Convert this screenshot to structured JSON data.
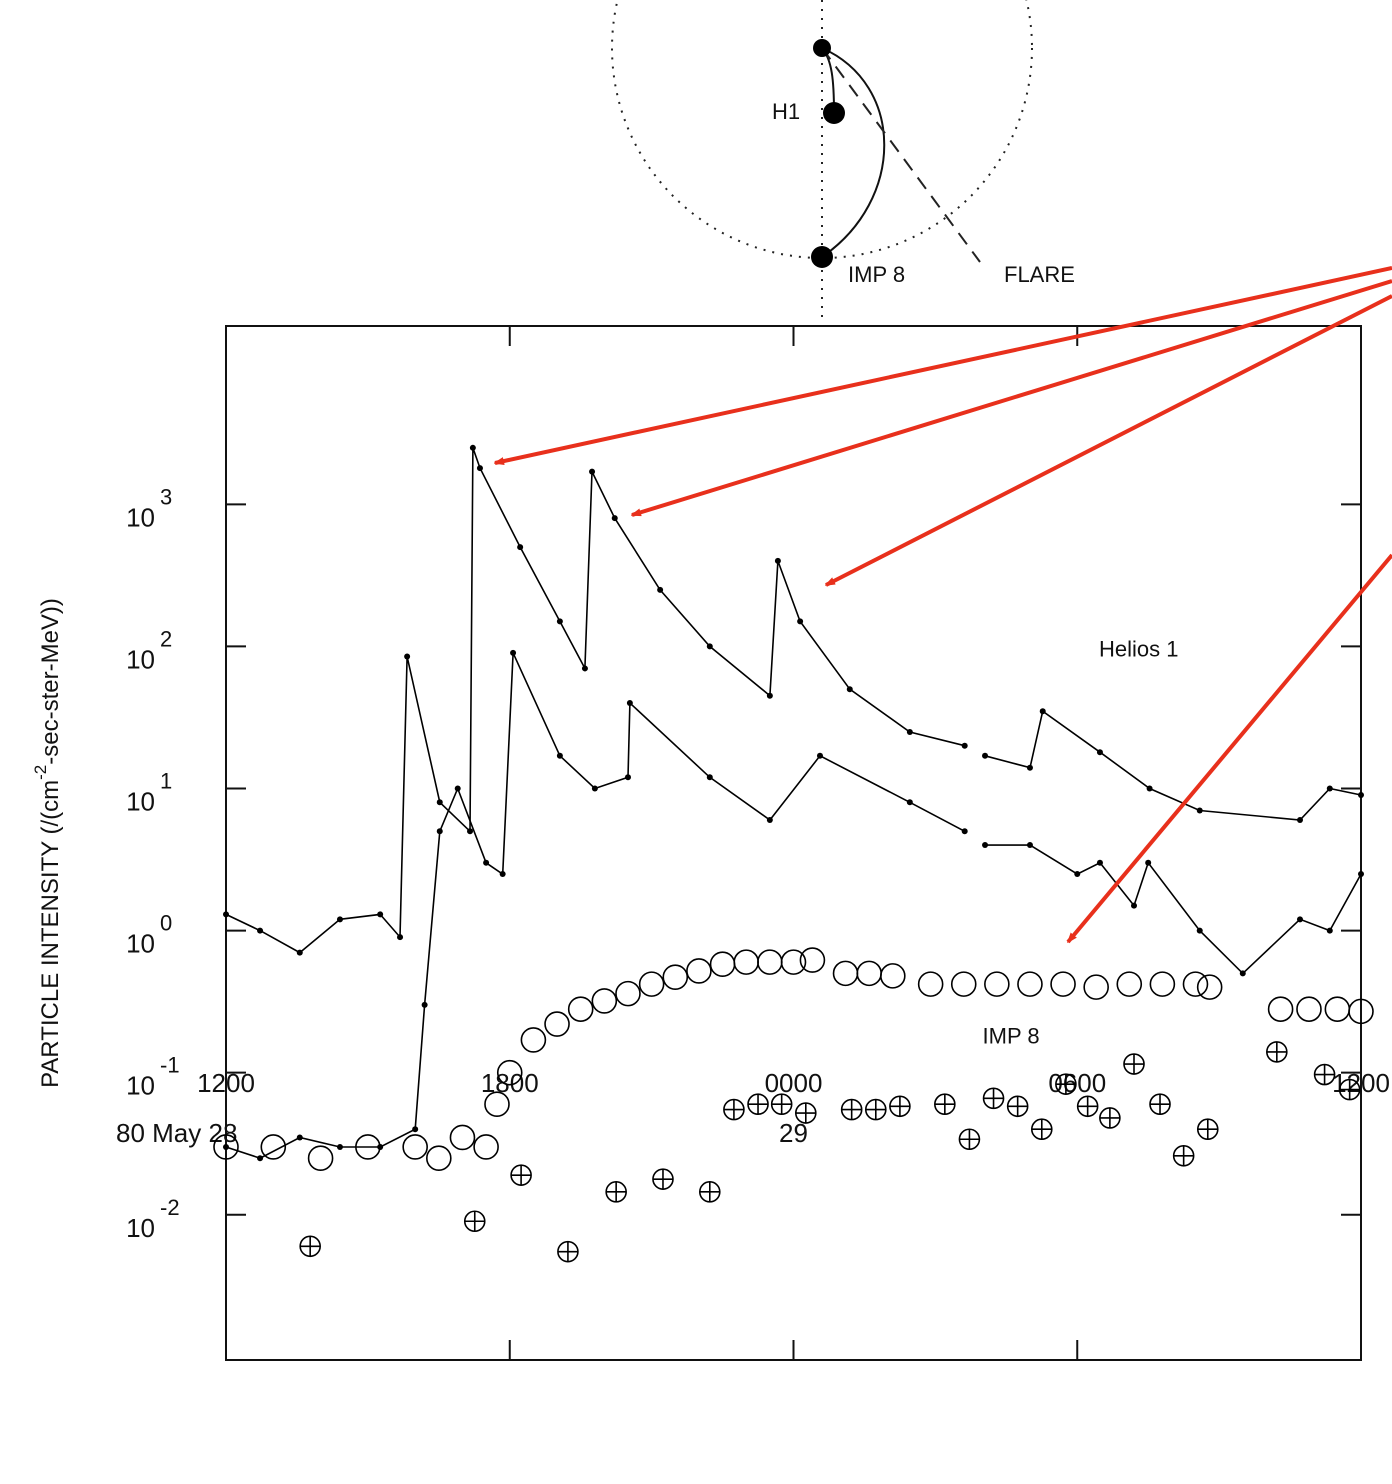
{
  "chart_data": {
    "type": "line",
    "y_label_parts": [
      "PARTICLE INTENSITY (/(cm",
      "-2",
      "-sec-ster-MeV))"
    ],
    "xlim": [
      0,
      24
    ],
    "xticks": [
      {
        "value": 0,
        "label": "1200"
      },
      {
        "value": 6,
        "label": "1800"
      },
      {
        "value": 12,
        "label": "0000"
      },
      {
        "value": 18,
        "label": "0600"
      },
      {
        "value": 24,
        "label": "1200"
      }
    ],
    "date_labels": [
      {
        "value": 0,
        "label": "80 May 28"
      },
      {
        "value": 12,
        "label": "29"
      }
    ],
    "ylim": [
      0.00095,
      18000
    ],
    "log_y": true,
    "yticks": [
      {
        "value": 0.01,
        "label": "10",
        "exponent": "-2"
      },
      {
        "value": 0.1,
        "label": "10",
        "exponent": "-1"
      },
      {
        "value": 1,
        "label": "10",
        "exponent": "0"
      },
      {
        "value": 10,
        "label": "10",
        "exponent": "1"
      },
      {
        "value": 100,
        "label": "10",
        "exponent": "2"
      },
      {
        "value": 1000,
        "label": "10",
        "exponent": "3"
      }
    ],
    "annotations": [
      {
        "text": "Helios 1",
        "x": 19.3,
        "y": 85
      },
      {
        "text": "IMP 8",
        "x": 16.6,
        "y": 0.16
      }
    ],
    "series": [
      {
        "type": "line",
        "marker": "dot",
        "color": "#000000",
        "x": [
          0,
          0.72,
          1.56,
          2.41,
          3.26,
          3.68,
          3.83,
          4.52,
          5.16,
          5.22,
          5.37,
          6.22,
          7.06,
          7.59,
          7.74,
          8.22,
          9.18,
          10.23,
          11.5,
          11.67,
          12.14,
          13.19,
          14.46,
          15.62,
          15.8,
          16.05,
          17.0,
          17.27,
          18.48,
          19.53,
          20.59,
          22.71,
          23.34,
          24
        ],
        "values": [
          1.3,
          1.0,
          0.7,
          1.2,
          1.3,
          0.9,
          85,
          8,
          5,
          2500,
          1800,
          500,
          150,
          70,
          1700,
          800,
          250,
          100,
          45,
          400,
          150,
          50,
          25,
          20,
          null,
          17,
          14,
          35,
          18,
          10,
          7,
          6,
          10,
          9
        ]
      },
      {
        "type": "line",
        "marker": "dot",
        "color": "#000000",
        "x": [
          0,
          0.72,
          1.56,
          2.41,
          3.26,
          4.0,
          4.2,
          4.52,
          4.9,
          5.5,
          5.85,
          6.07,
          7.06,
          7.8,
          8.5,
          8.54,
          10.23,
          11.5,
          12.56,
          14.46,
          15.62,
          15.8,
          16.05,
          17.0,
          18.0,
          18.48,
          19.2,
          19.5,
          20.59,
          21.5,
          22.71,
          23.34,
          24
        ],
        "values": [
          0.03,
          0.025,
          0.035,
          0.03,
          0.03,
          0.04,
          0.3,
          5,
          10,
          3,
          2.5,
          90,
          17,
          10,
          12,
          40,
          12,
          6,
          17,
          8,
          5,
          null,
          4,
          4,
          2.5,
          3,
          1.5,
          3,
          1,
          0.5,
          1.2,
          1,
          2.5
        ]
      },
      {
        "type": "scatter",
        "marker": "circle",
        "color": "#000000",
        "x": [
          0,
          1,
          2,
          3,
          4,
          4.5,
          5,
          5.5,
          5.73,
          6.0,
          6.5,
          7.0,
          7.5,
          8.0,
          8.5,
          9.0,
          9.5,
          10.0,
          10.5,
          11.0,
          11.5,
          12.0,
          12.4,
          13.1,
          13.6,
          14.1,
          14.9,
          15.6,
          16.3,
          17.0,
          17.7,
          18.4,
          19.1,
          19.8,
          20.5,
          20.8,
          22.3,
          22.9,
          23.5,
          24
        ],
        "values": [
          0.03,
          0.03,
          0.025,
          0.03,
          0.03,
          0.025,
          0.035,
          0.03,
          0.06,
          0.1,
          0.17,
          0.22,
          0.28,
          0.32,
          0.36,
          0.42,
          0.47,
          0.52,
          0.58,
          0.6,
          0.6,
          0.6,
          0.62,
          0.5,
          0.5,
          0.48,
          0.42,
          0.42,
          0.42,
          0.42,
          0.42,
          0.4,
          0.42,
          0.42,
          0.42,
          0.4,
          0.28,
          0.28,
          0.28,
          0.27
        ]
      },
      {
        "type": "scatter",
        "marker": "crossed-circle",
        "color": "#000000",
        "x": [
          1.78,
          5.26,
          6.24,
          7.23,
          8.25,
          9.24,
          10.23,
          10.74,
          11.25,
          11.75,
          12.26,
          13.23,
          13.74,
          14.25,
          15.2,
          15.72,
          16.23,
          16.74,
          17.25,
          17.76,
          18.22,
          18.69,
          19.2,
          19.75,
          20.25,
          20.76,
          22.22,
          23.23,
          23.76
        ],
        "values": [
          0.006,
          0.009,
          0.019,
          0.0055,
          0.0145,
          0.0178,
          0.0145,
          0.055,
          0.06,
          0.06,
          0.052,
          0.055,
          0.055,
          0.058,
          0.06,
          0.034,
          0.066,
          0.058,
          0.04,
          0.083,
          0.058,
          0.048,
          0.115,
          0.06,
          0.026,
          0.04,
          0.14,
          0.097,
          0.076
        ]
      }
    ]
  },
  "diagram": {
    "labels": [
      "H1",
      "IMP 8",
      "FLARE"
    ]
  }
}
